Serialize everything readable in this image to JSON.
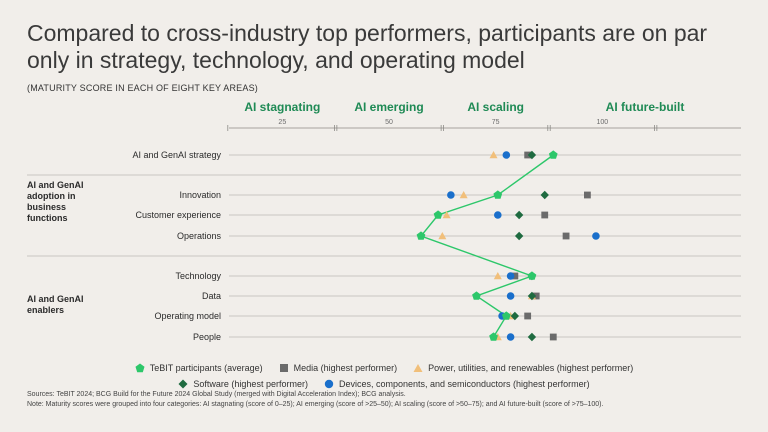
{
  "title": "Compared to cross-industry top performers, participants are on par only in strategy, technology, and operating model",
  "subtitle": "(MATURITY SCORE IN EACH OF EIGHT KEY AREAS)",
  "colors": {
    "tebit": "#2dc76a",
    "media": "#6b6b6b",
    "power": "#f1bf7a",
    "software": "#1f6b40",
    "devices": "#1a6fcb",
    "header_green": "#1f8a55",
    "grid": "#c9c6c1"
  },
  "chart_data": {
    "type": "scatter",
    "title": "Compared to cross-industry top performers, participants are on par only in strategy, technology, and operating model",
    "subtitle": "(MATURITY SCORE IN EACH OF EIGHT KEY AREAS)",
    "xlim": [
      0,
      120
    ],
    "x_ticks": [
      25,
      50,
      75,
      100
    ],
    "categories": [
      {
        "label": "AI stagnating",
        "range": [
          0,
          25
        ]
      },
      {
        "label": "AI emerging",
        "range": [
          25,
          50
        ]
      },
      {
        "label": "AI scaling",
        "range": [
          50,
          75
        ]
      },
      {
        "label": "AI future-built",
        "range": [
          75,
          120
        ]
      }
    ],
    "groups": [
      {
        "label": "",
        "rows": [
          "AI and GenAI strategy"
        ]
      },
      {
        "label": "AI and GenAI adoption in business functions",
        "rows": [
          "Innovation",
          "Customer experience",
          "Operations"
        ]
      },
      {
        "label": "AI and GenAI enablers",
        "rows": [
          "Technology",
          "Data",
          "Operating model",
          "People"
        ]
      }
    ],
    "rows": [
      "AI and GenAI strategy",
      "Innovation",
      "Customer experience",
      "Operations",
      "Technology",
      "Data",
      "Operating model",
      "People"
    ],
    "series": [
      {
        "name": "TeBIT participants (average)",
        "marker": "pentagon",
        "color": "#2dc76a",
        "connected": true,
        "values": [
          76,
          63,
          49,
          45,
          71,
          58,
          65,
          62
        ]
      },
      {
        "name": "Media (highest performer)",
        "marker": "square",
        "color": "#6b6b6b",
        "values": [
          70,
          84,
          74,
          79,
          67,
          72,
          70,
          76
        ]
      },
      {
        "name": "Power, utilities, and renewables (highest performer)",
        "marker": "triangle",
        "color": "#f1bf7a",
        "values": [
          62,
          55,
          51,
          50,
          63,
          71,
          66,
          63
        ]
      },
      {
        "name": "Software (highest performer)",
        "marker": "diamond",
        "color": "#1f6b40",
        "values": [
          71,
          74,
          68,
          68,
          71,
          71,
          67,
          71
        ]
      },
      {
        "name": "Devices, components, and semiconductors (highest performer)",
        "marker": "circle",
        "color": "#1a6fcb",
        "values": [
          65,
          52,
          63,
          86,
          66,
          66,
          64,
          66
        ]
      }
    ]
  },
  "legend": {
    "tebit": "TeBIT participants (average)",
    "media": "Media (highest performer)",
    "power": "Power, utilities, and renewables (highest performer)",
    "software": "Software (highest performer)",
    "devices": "Devices, components, and semiconductors (highest performer)"
  },
  "notes": {
    "sources": "Sources: TeBIT 2024; BCG Build for the Future 2024 Global Study (merged with Digital Acceleration Index); BCG analysis.",
    "note": "Note: Maturity scores were grouped into four categories: AI stagnating (score of 0–25); AI emerging (score of >25–50); AI scaling (score of >50–75); and AI future-built (score of >75–100)."
  }
}
